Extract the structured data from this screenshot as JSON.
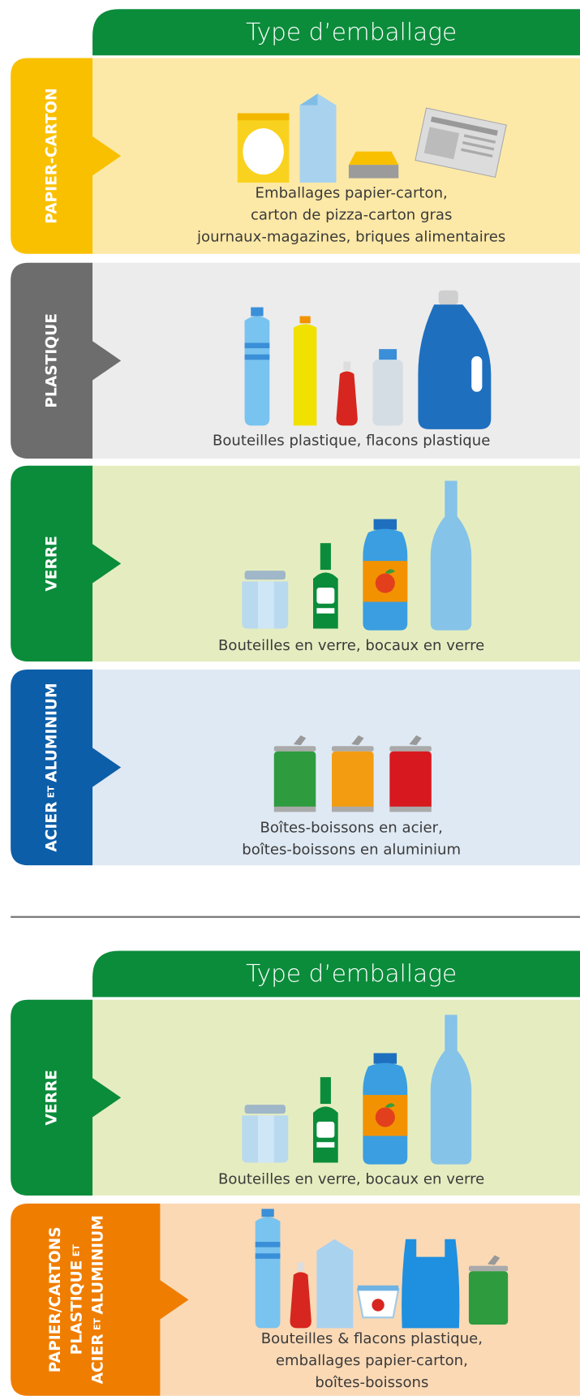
{
  "sections": [
    {
      "header": "Type d’emballage",
      "rows": [
        {
          "label": [
            [
              "PAPIER-CARTON"
            ]
          ],
          "caption": [
            "Emballages papier-carton,",
            "carton de pizza-carton gras",
            "journaux-magazines, briques alimentaires"
          ]
        },
        {
          "label": [
            [
              "PLASTIQUE"
            ]
          ],
          "caption": [
            "Bouteilles plastique, flacons plastique"
          ]
        },
        {
          "label": [
            [
              "VERRE"
            ]
          ],
          "caption": [
            "Bouteilles en verre, bocaux en verre"
          ]
        },
        {
          "label": [
            [
              "ACIER",
              "ET",
              "ALUMINIUM"
            ]
          ],
          "caption": [
            "Boîtes-boissons en acier,",
            "boîtes-boissons en aluminium"
          ]
        }
      ]
    },
    {
      "header": "Type d’emballage",
      "rows": [
        {
          "label": [
            [
              "VERRE"
            ]
          ],
          "caption": [
            "Bouteilles en verre, bocaux en verre"
          ]
        },
        {
          "label": [
            [
              "PAPIER/CARTONS"
            ],
            [
              "PLASTIQUE",
              "ET"
            ],
            [
              "ACIER",
              "ET",
              "ALUMINIUM"
            ]
          ],
          "caption": [
            "Bouteilles & flacons plastique,",
            "emballages papier-carton,",
            "boîtes-boissons"
          ]
        }
      ]
    }
  ]
}
